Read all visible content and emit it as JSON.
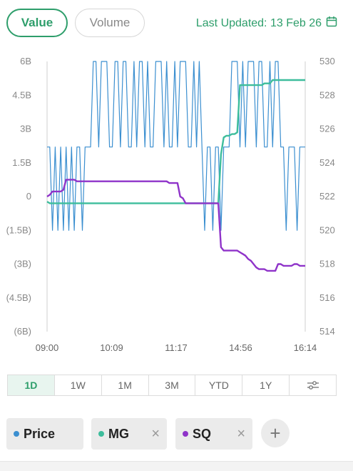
{
  "toggle": {
    "value_label": "Value",
    "volume_label": "Volume",
    "selected": "Value"
  },
  "last_updated": "Last Updated: 13 Feb 26",
  "range_tabs": [
    "1D",
    "1W",
    "1M",
    "3M",
    "YTD",
    "1Y"
  ],
  "range_selected": "1D",
  "chips": {
    "price": {
      "label": "Price",
      "color": "#3b8fd0"
    },
    "mg": {
      "label": "MG",
      "color": "#3dbd9c",
      "close": "×"
    },
    "sq": {
      "label": "SQ",
      "color": "#8f33c9",
      "close": "×"
    },
    "add": "+"
  },
  "colors": {
    "accent": "#2e9e6b"
  },
  "chart_data": {
    "type": "line",
    "x_ticks": [
      "09:00",
      "10:09",
      "11:17",
      "14:56",
      "16:14"
    ],
    "left_axis": {
      "ticks": [
        "6B",
        "4.5B",
        "3B",
        "1.5B",
        "0",
        "(1.5B)",
        "(3B)",
        "(4.5B)",
        "(6B)"
      ],
      "range": [
        -6,
        6
      ],
      "unit": "B"
    },
    "right_axis": {
      "ticks": [
        "530",
        "528",
        "526",
        "524",
        "522",
        "520",
        "518",
        "516",
        "514"
      ],
      "range": [
        514,
        530
      ]
    },
    "series": [
      {
        "name": "Price",
        "axis": "left",
        "color": "#3b8fd0",
        "values": [
          2.2,
          2.2,
          -1.5,
          2.2,
          -1.5,
          2.2,
          -1.5,
          2.2,
          -1.5,
          2.2,
          -1.5,
          2.2,
          2.2,
          -1.5,
          2.2,
          2.2,
          2.2,
          6,
          6,
          2.2,
          6,
          6,
          6,
          2.2,
          2.2,
          6,
          6,
          2.2,
          6,
          6,
          2.2,
          2.2,
          6,
          2.2,
          6,
          6,
          2.2,
          6,
          2.2,
          2.2,
          6,
          6,
          6,
          2.2,
          6,
          2.2,
          2.2,
          6,
          2.2,
          6,
          6,
          6,
          2.2,
          2.2,
          6,
          2.2,
          6,
          2.2,
          -1.5,
          2.2,
          2.2,
          -1.5,
          2.2,
          2.2,
          -1.5,
          2.2,
          2.2,
          2.2,
          6,
          6,
          6,
          2.2,
          6,
          2.2,
          6,
          6,
          6,
          2.2,
          6,
          6,
          2.2,
          2.2,
          6,
          2.2,
          6,
          6,
          2.2,
          2.2,
          -1.5,
          2.2,
          2.2,
          2.2,
          -1.5,
          2.2,
          2.2,
          2.2
        ]
      },
      {
        "name": "MG",
        "axis": "right",
        "color": "#3dbd9c",
        "values": [
          521.7,
          521.6,
          521.6,
          521.6,
          521.6,
          521.6,
          521.6,
          521.6,
          521.6,
          521.6,
          521.6,
          521.6,
          521.6,
          521.6,
          521.6,
          521.6,
          521.6,
          521.6,
          521.6,
          521.6,
          521.6,
          521.6,
          521.6,
          521.6,
          521.6,
          521.6,
          521.6,
          521.6,
          521.6,
          521.6,
          521.6,
          521.6,
          521.6,
          521.6,
          521.6,
          521.6,
          521.6,
          521.6,
          521.6,
          521.6,
          521.6,
          521.6,
          521.6,
          521.6,
          521.6,
          521.6,
          521.6,
          521.6,
          521.6,
          521.6,
          521.6,
          521.6,
          521.6,
          521.6,
          521.6,
          521.6,
          521.6,
          521.6,
          521.6,
          521.6,
          521.6,
          521.6,
          521.6,
          521.6,
          524.5,
          525.5,
          525.6,
          525.6,
          525.7,
          525.7,
          525.8,
          528.6,
          528.6,
          528.6,
          528.6,
          528.6,
          528.6,
          528.6,
          528.6,
          528.6,
          528.7,
          528.7,
          528.7,
          528.9,
          528.9,
          528.9,
          528.9,
          528.9,
          528.9,
          528.9,
          528.9,
          528.9,
          528.9,
          528.9,
          528.9,
          528.9
        ]
      },
      {
        "name": "SQ",
        "axis": "right",
        "color": "#8f33c9",
        "values": [
          522.0,
          522.1,
          522.3,
          522.3,
          522.3,
          522.3,
          522.4,
          523.0,
          523.0,
          523.0,
          523.0,
          522.9,
          522.9,
          522.9,
          522.9,
          522.9,
          522.9,
          522.9,
          522.9,
          522.9,
          522.9,
          522.9,
          522.9,
          522.9,
          522.9,
          522.9,
          522.9,
          522.9,
          522.9,
          522.9,
          522.9,
          522.9,
          522.9,
          522.9,
          522.9,
          522.9,
          522.9,
          522.9,
          522.9,
          522.9,
          522.9,
          522.9,
          522.9,
          522.9,
          522.9,
          522.8,
          522.8,
          522.8,
          522.8,
          522.0,
          521.9,
          521.6,
          521.6,
          521.6,
          521.6,
          521.6,
          521.6,
          521.6,
          521.6,
          521.6,
          521.6,
          521.6,
          521.6,
          521.6,
          519.0,
          518.8,
          518.8,
          518.8,
          518.8,
          518.8,
          518.8,
          518.7,
          518.6,
          518.5,
          518.3,
          518.2,
          518.0,
          517.8,
          517.7,
          517.7,
          517.7,
          517.6,
          517.6,
          517.6,
          517.6,
          518.0,
          518.0,
          517.9,
          517.9,
          517.9,
          517.9,
          518.0,
          518.0,
          517.9,
          517.9,
          517.9
        ]
      }
    ],
    "grid": false,
    "legend": "bottom"
  }
}
